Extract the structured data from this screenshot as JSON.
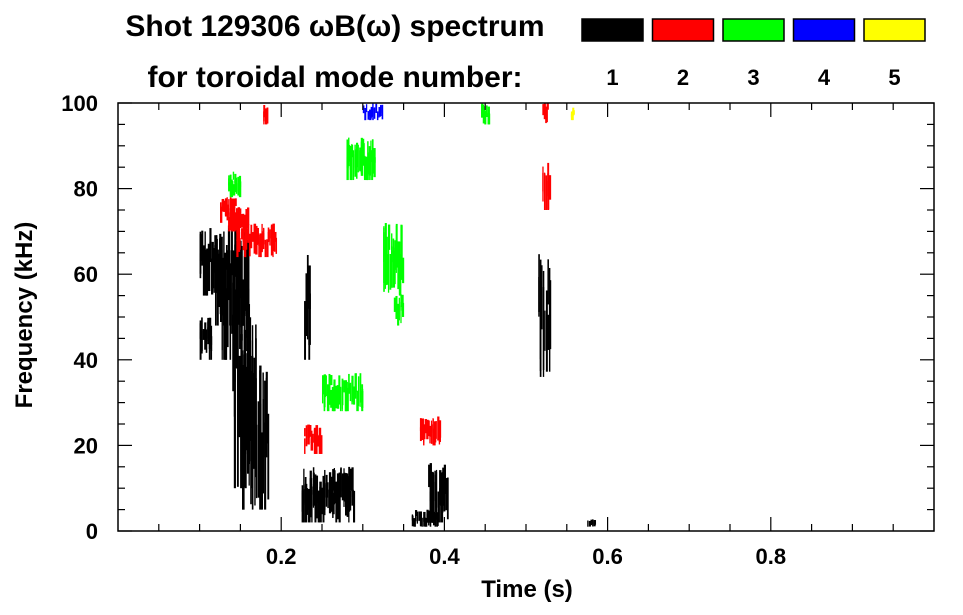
{
  "chart_data": {
    "type": "heatmap",
    "title": "Shot 129306 ωB(ω) spectrum",
    "legend_title": "for toroidal mode number:",
    "legend_placement": "top-right",
    "legend": [
      {
        "label": "1",
        "color": "#000000"
      },
      {
        "label": "2",
        "color": "#ff0000"
      },
      {
        "label": "3",
        "color": "#00ff00"
      },
      {
        "label": "4",
        "color": "#0000ff"
      },
      {
        "label": "5",
        "color": "#ffff00"
      }
    ],
    "xlabel": "Time (s)",
    "ylabel": "Frequency (kHz)",
    "xlim": [
      0.0,
      1.0
    ],
    "ylim": [
      0,
      100
    ],
    "xticks": [
      "0.2",
      "0.4",
      "0.6",
      "0.8"
    ],
    "xtick_values": [
      0.2,
      0.4,
      0.6,
      0.8
    ],
    "yticks": [
      "0",
      "20",
      "40",
      "60",
      "80",
      "100"
    ],
    "ytick_values": [
      0,
      20,
      40,
      60,
      80,
      100
    ],
    "grid": false,
    "series": [
      {
        "name": "1",
        "color": "#000000",
        "regions": [
          {
            "t": [
              0.1,
              0.115
            ],
            "f": [
              40,
              50
            ]
          },
          {
            "t": [
              0.1,
              0.128
            ],
            "f": [
              55,
              71
            ]
          },
          {
            "t": [
              0.115,
              0.14
            ],
            "f": [
              48,
              68
            ]
          },
          {
            "t": [
              0.125,
              0.16
            ],
            "f": [
              40,
              72
            ]
          },
          {
            "t": [
              0.14,
              0.165
            ],
            "f": [
              10,
              58
            ]
          },
          {
            "t": [
              0.15,
              0.17
            ],
            "f": [
              5,
              55
            ]
          },
          {
            "t": [
              0.165,
              0.185
            ],
            "f": [
              5,
              40
            ]
          },
          {
            "t": [
              0.228,
              0.235
            ],
            "f": [
              40,
              65
            ]
          },
          {
            "t": [
              0.225,
              0.29
            ],
            "f": [
              2,
              15
            ]
          },
          {
            "t": [
              0.38,
              0.405
            ],
            "f": [
              2,
              16
            ]
          },
          {
            "t": [
              0.36,
              0.392
            ],
            "f": [
              1,
              5
            ]
          },
          {
            "t": [
              0.515,
              0.53
            ],
            "f": [
              36,
              65
            ]
          },
          {
            "t": [
              0.575,
              0.585
            ],
            "f": [
              1,
              3
            ]
          }
        ]
      },
      {
        "name": "2",
        "color": "#ff0000",
        "regions": [
          {
            "t": [
              0.125,
              0.145
            ],
            "f": [
              72,
              78
            ]
          },
          {
            "t": [
              0.135,
              0.16
            ],
            "f": [
              70,
              76
            ]
          },
          {
            "t": [
              0.145,
              0.195
            ],
            "f": [
              64,
              72
            ]
          },
          {
            "t": [
              0.228,
              0.25
            ],
            "f": [
              18,
              25
            ]
          },
          {
            "t": [
              0.37,
              0.395
            ],
            "f": [
              20,
              27
            ]
          },
          {
            "t": [
              0.52,
              0.53
            ],
            "f": [
              75,
              88
            ]
          },
          {
            "t": [
              0.52,
              0.527
            ],
            "f": [
              95,
              100
            ]
          },
          {
            "t": [
              0.178,
              0.184
            ],
            "f": [
              95,
              100
            ]
          }
        ]
      },
      {
        "name": "3",
        "color": "#00ff00",
        "regions": [
          {
            "t": [
              0.28,
              0.315
            ],
            "f": [
              82,
              92
            ]
          },
          {
            "t": [
              0.325,
              0.35
            ],
            "f": [
              55,
              72
            ]
          },
          {
            "t": [
              0.338,
              0.35
            ],
            "f": [
              48,
              56
            ]
          },
          {
            "t": [
              0.25,
              0.3
            ],
            "f": [
              28,
              37
            ]
          },
          {
            "t": [
              0.445,
              0.455
            ],
            "f": [
              95,
              100
            ]
          },
          {
            "t": [
              0.135,
              0.15
            ],
            "f": [
              78,
              84
            ]
          }
        ]
      },
      {
        "name": "4",
        "color": "#0000ff",
        "regions": [
          {
            "t": [
              0.3,
              0.325
            ],
            "f": [
              96,
              100
            ]
          }
        ]
      },
      {
        "name": "5",
        "color": "#ffff00",
        "regions": [
          {
            "t": [
              0.555,
              0.56
            ],
            "f": [
              96,
              99
            ]
          }
        ]
      }
    ]
  }
}
